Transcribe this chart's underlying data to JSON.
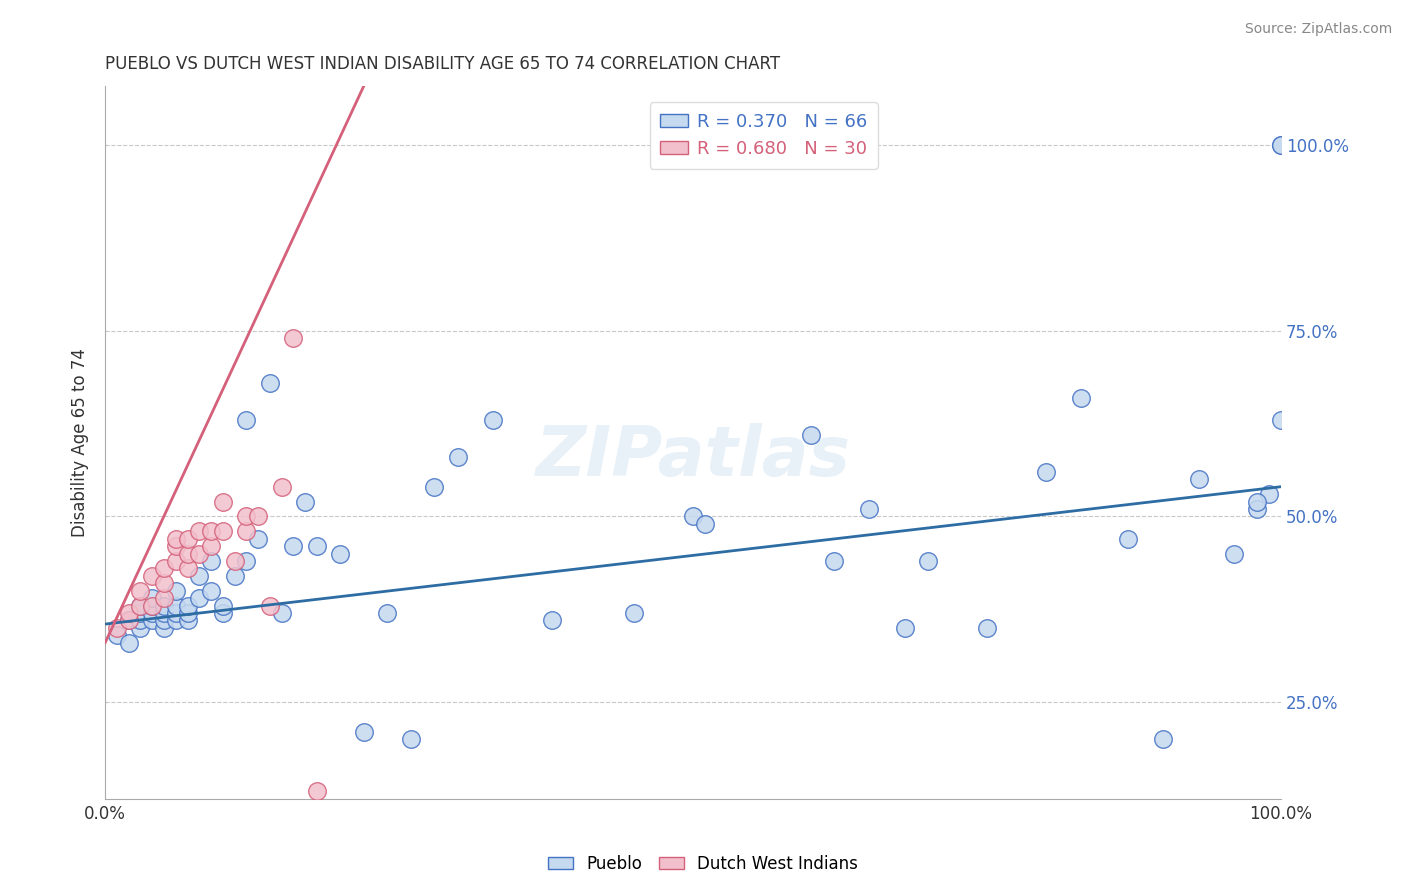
{
  "title": "PUEBLO VS DUTCH WEST INDIAN DISABILITY AGE 65 TO 74 CORRELATION CHART",
  "source": "Source: ZipAtlas.com",
  "ylabel": "Disability Age 65 to 74",
  "xlim": [
    0.0,
    1.0
  ],
  "ylim": [
    0.12,
    1.08
  ],
  "xticks": [
    0.0,
    0.25,
    0.5,
    0.75,
    1.0
  ],
  "xtick_labels": [
    "0.0%",
    "",
    "",
    "",
    "100.0%"
  ],
  "yticks": [
    0.25,
    0.5,
    0.75,
    1.0
  ],
  "ytick_labels": [
    "25.0%",
    "50.0%",
    "75.0%",
    "100.0%"
  ],
  "legend_R_blue": "R = 0.370",
  "legend_N_blue": "N = 66",
  "legend_R_pink": "R = 0.680",
  "legend_N_pink": "N = 30",
  "legend_label_blue": "Pueblo",
  "legend_label_pink": "Dutch West Indians",
  "blue_fill": "#c5d9ef",
  "blue_edge": "#4472c4",
  "pink_fill": "#f2c0cc",
  "pink_edge": "#d4607a",
  "blue_line": "#2e6da4",
  "pink_line": "#d4607a",
  "watermark": "ZIPatlas",
  "pueblo_x": [
    0.01,
    0.02,
    0.02,
    0.03,
    0.03,
    0.03,
    0.03,
    0.04,
    0.04,
    0.04,
    0.04,
    0.05,
    0.05,
    0.05,
    0.05,
    0.06,
    0.06,
    0.06,
    0.06,
    0.07,
    0.07,
    0.07,
    0.08,
    0.08,
    0.09,
    0.09,
    0.1,
    0.1,
    0.11,
    0.12,
    0.12,
    0.13,
    0.14,
    0.15,
    0.16,
    0.17,
    0.18,
    0.2,
    0.22,
    0.24,
    0.26,
    0.28,
    0.3,
    0.33,
    0.38,
    0.45,
    0.5,
    0.51,
    0.6,
    0.62,
    0.65,
    0.68,
    0.7,
    0.75,
    0.8,
    0.83,
    0.87,
    0.9,
    0.93,
    0.96,
    0.98,
    0.99,
    1.0,
    1.0,
    1.0,
    0.98
  ],
  "pueblo_y": [
    0.34,
    0.36,
    0.33,
    0.35,
    0.36,
    0.37,
    0.38,
    0.36,
    0.37,
    0.38,
    0.39,
    0.35,
    0.36,
    0.37,
    0.38,
    0.36,
    0.37,
    0.38,
    0.4,
    0.36,
    0.37,
    0.38,
    0.39,
    0.42,
    0.4,
    0.44,
    0.37,
    0.38,
    0.42,
    0.44,
    0.63,
    0.47,
    0.68,
    0.37,
    0.46,
    0.52,
    0.46,
    0.45,
    0.21,
    0.37,
    0.2,
    0.54,
    0.58,
    0.63,
    0.36,
    0.37,
    0.5,
    0.49,
    0.61,
    0.44,
    0.51,
    0.35,
    0.44,
    0.35,
    0.56,
    0.66,
    0.47,
    0.2,
    0.55,
    0.45,
    0.51,
    0.53,
    1.0,
    1.0,
    0.63,
    0.52
  ],
  "dwi_x": [
    0.01,
    0.02,
    0.02,
    0.03,
    0.03,
    0.04,
    0.04,
    0.05,
    0.05,
    0.05,
    0.06,
    0.06,
    0.06,
    0.07,
    0.07,
    0.07,
    0.08,
    0.08,
    0.09,
    0.09,
    0.1,
    0.1,
    0.11,
    0.12,
    0.12,
    0.13,
    0.14,
    0.15,
    0.16,
    0.18
  ],
  "dwi_y": [
    0.35,
    0.36,
    0.37,
    0.38,
    0.4,
    0.38,
    0.42,
    0.39,
    0.41,
    0.43,
    0.44,
    0.46,
    0.47,
    0.43,
    0.45,
    0.47,
    0.45,
    0.48,
    0.46,
    0.48,
    0.48,
    0.52,
    0.44,
    0.48,
    0.5,
    0.5,
    0.38,
    0.54,
    0.74,
    0.13
  ],
  "blue_line_x0": 0.0,
  "blue_line_y0": 0.355,
  "blue_line_x1": 1.0,
  "blue_line_y1": 0.54,
  "pink_line_x0": 0.0,
  "pink_line_y0": 0.33,
  "pink_line_x1": 0.22,
  "pink_line_y1": 1.08,
  "background_color": "#ffffff",
  "grid_color": "#c8c8c8"
}
